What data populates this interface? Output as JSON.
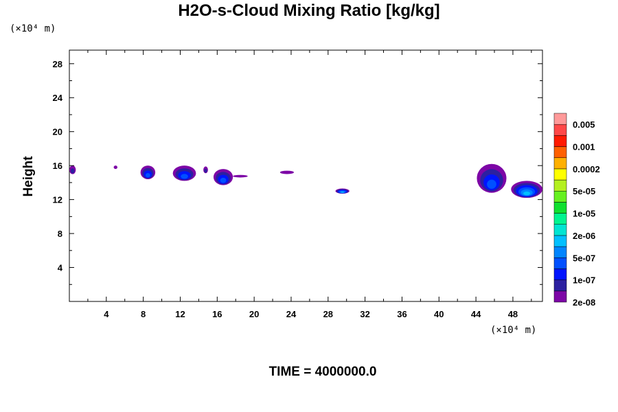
{
  "chart_data": {
    "type": "heatmap",
    "title": "H2O-s-Cloud Mixing Ratio [kg/kg]",
    "ylabel": "Height",
    "xlabel": "",
    "x_unit": "(×10⁴ m)",
    "y_unit": "(×10⁴ m)",
    "footer": "TIME = 4000000.0",
    "xlim": [
      0,
      51.2
    ],
    "ylim": [
      0,
      29.6
    ],
    "x_ticks": [
      "4",
      "8",
      "12",
      "16",
      "20",
      "24",
      "28",
      "32",
      "36",
      "40",
      "44",
      "48"
    ],
    "y_ticks": [
      "4",
      "8",
      "12",
      "16",
      "20",
      "24",
      "28"
    ],
    "colorbar": {
      "labels": [
        "0.005",
        "0.001",
        "0.0002",
        "5e-05",
        "1e-05",
        "2e-06",
        "5e-07",
        "1e-07",
        "2e-08"
      ],
      "colors": [
        "#7d06a6",
        "#2c20a0",
        "#0014ff",
        "#0050ff",
        "#0085ff",
        "#00c0ff",
        "#00e5d2",
        "#00f590",
        "#10e030",
        "#66f020",
        "#b4f020",
        "#ffff00",
        "#ffb000",
        "#ff6000",
        "#ff1a00",
        "#ff4848",
        "#ff9a9a"
      ]
    },
    "cloud_blobs": [
      {
        "x": [
          0.0,
          0.7
        ],
        "y": [
          15.0,
          16.0
        ],
        "level": "1e-07"
      },
      {
        "x": [
          4.8,
          5.2
        ],
        "y": [
          15.6,
          16.0
        ],
        "level": "2e-08"
      },
      {
        "x": [
          7.7,
          9.3
        ],
        "y": [
          14.4,
          16.0
        ],
        "level": "5e-07"
      },
      {
        "x": [
          11.2,
          13.7
        ],
        "y": [
          14.2,
          16.0
        ],
        "level": "5e-07"
      },
      {
        "x": [
          14.5,
          15.0
        ],
        "y": [
          15.1,
          15.9
        ],
        "level": "1e-07"
      },
      {
        "x": [
          15.6,
          17.7
        ],
        "y": [
          13.7,
          15.6
        ],
        "level": "5e-07"
      },
      {
        "x": [
          17.7,
          19.3
        ],
        "y": [
          14.6,
          14.9
        ],
        "level": "2e-08"
      },
      {
        "x": [
          22.8,
          24.3
        ],
        "y": [
          15.0,
          15.4
        ],
        "level": "2e-08"
      },
      {
        "x": [
          28.8,
          30.3
        ],
        "y": [
          12.7,
          13.3
        ],
        "level": "2e-06"
      },
      {
        "x": [
          44.1,
          47.3
        ],
        "y": [
          12.8,
          16.2
        ],
        "level": "5e-07"
      },
      {
        "x": [
          47.8,
          51.2
        ],
        "y": [
          12.2,
          14.2
        ],
        "level": "2e-06"
      }
    ]
  }
}
